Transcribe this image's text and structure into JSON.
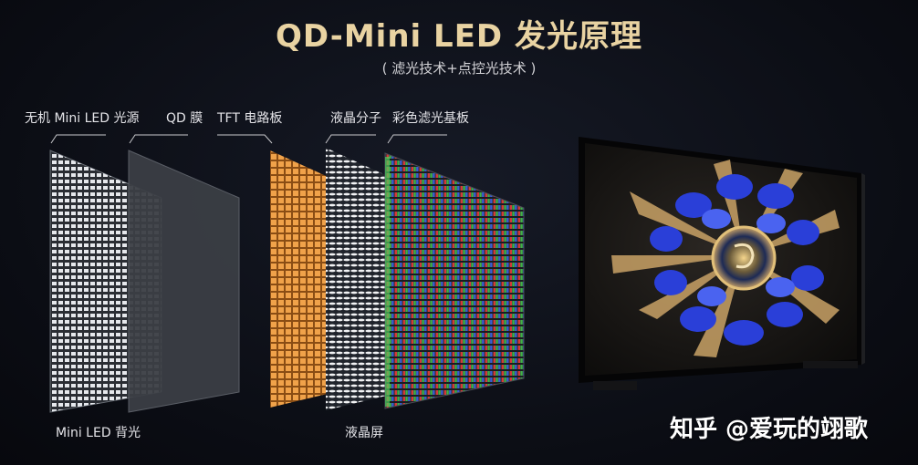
{
  "title": "QD-Mini LED 发光原理",
  "subtitle": "( 滤光技术+点控光技术 )",
  "layers": [
    {
      "name": "无机 Mini LED 光源"
    },
    {
      "name": "QD 膜"
    },
    {
      "name": "TFT 电路板"
    },
    {
      "name": "液晶分子"
    },
    {
      "name": "彩色滤光基板"
    }
  ],
  "groups": {
    "backlight": "Mini LED 背光",
    "lcd": "液晶屏"
  },
  "watermark": "知乎 @爱玩的翊歌",
  "colors": {
    "title": "#e9d3a2",
    "tft": "#f0a24a",
    "red": "#d23a3a",
    "green": "#3fb04a",
    "blue": "#3a5fd0",
    "flower_blue": "#2a3fd8",
    "gold": "#c9a266"
  }
}
